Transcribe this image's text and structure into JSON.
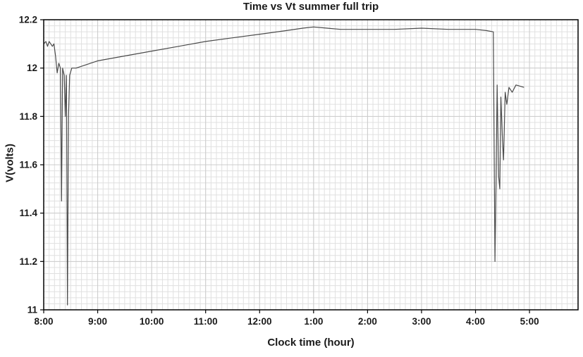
{
  "figure": {
    "background": "#ffffff",
    "border_color": "#000000"
  },
  "chart_data": {
    "type": "line",
    "title": "Time vs Vt summer full trip",
    "xlabel": "Clock time (hour)",
    "ylabel": "V(volts)",
    "xlim": [
      8,
      17.9
    ],
    "ylim": [
      11,
      12.2
    ],
    "xticks": {
      "values": [
        8,
        9,
        10,
        11,
        12,
        13,
        14,
        15,
        16,
        17
      ],
      "labels": [
        "8:00",
        "9:00",
        "10:00",
        "11:00",
        "12:00",
        "1:00",
        "2:00",
        "3:00",
        "4:00",
        "5:00"
      ]
    },
    "yticks": {
      "values": [
        11,
        11.2,
        11.4,
        11.6,
        11.8,
        12,
        12.2
      ],
      "labels": [
        "11",
        "11.2",
        "11.4",
        "11.6",
        "11.8",
        "12",
        "12.2"
      ]
    },
    "grid": {
      "on": true,
      "minor_x_step": 0.1,
      "minor_y_step": 0.025,
      "minor_color": "#e0e0e0",
      "major_color": "#cccccc"
    },
    "line_color": "#4a4a4a",
    "legend": "none",
    "series": [
      {
        "name": "Vt",
        "points": [
          [
            8.0,
            12.1
          ],
          [
            8.04,
            12.11
          ],
          [
            8.07,
            12.09
          ],
          [
            8.1,
            12.11
          ],
          [
            8.13,
            12.1
          ],
          [
            8.16,
            12.09
          ],
          [
            8.19,
            12.1
          ],
          [
            8.22,
            12.05
          ],
          [
            8.25,
            11.98
          ],
          [
            8.28,
            12.02
          ],
          [
            8.31,
            12.0
          ],
          [
            8.33,
            11.45
          ],
          [
            8.35,
            12.0
          ],
          [
            8.38,
            11.97
          ],
          [
            8.4,
            11.8
          ],
          [
            8.42,
            11.97
          ],
          [
            8.44,
            11.02
          ],
          [
            8.46,
            11.8
          ],
          [
            8.48,
            11.97
          ],
          [
            8.52,
            12.0
          ],
          [
            8.6,
            12.0
          ],
          [
            9.0,
            12.03
          ],
          [
            9.5,
            12.05
          ],
          [
            10.0,
            12.07
          ],
          [
            10.5,
            12.09
          ],
          [
            11.0,
            12.11
          ],
          [
            11.5,
            12.125
          ],
          [
            12.0,
            12.14
          ],
          [
            12.5,
            12.155
          ],
          [
            12.8,
            12.165
          ],
          [
            13.0,
            12.17
          ],
          [
            13.25,
            12.165
          ],
          [
            13.5,
            12.16
          ],
          [
            14.0,
            12.16
          ],
          [
            14.5,
            12.16
          ],
          [
            15.0,
            12.165
          ],
          [
            15.5,
            12.16
          ],
          [
            16.0,
            12.16
          ],
          [
            16.2,
            12.155
          ],
          [
            16.33,
            12.15
          ],
          [
            16.36,
            11.2
          ],
          [
            16.38,
            11.52
          ],
          [
            16.4,
            11.93
          ],
          [
            16.43,
            11.55
          ],
          [
            16.45,
            11.5
          ],
          [
            16.47,
            11.88
          ],
          [
            16.5,
            11.7
          ],
          [
            16.52,
            11.62
          ],
          [
            16.55,
            11.9
          ],
          [
            16.58,
            11.85
          ],
          [
            16.62,
            11.92
          ],
          [
            16.68,
            11.9
          ],
          [
            16.75,
            11.93
          ],
          [
            16.9,
            11.92
          ]
        ]
      }
    ]
  }
}
